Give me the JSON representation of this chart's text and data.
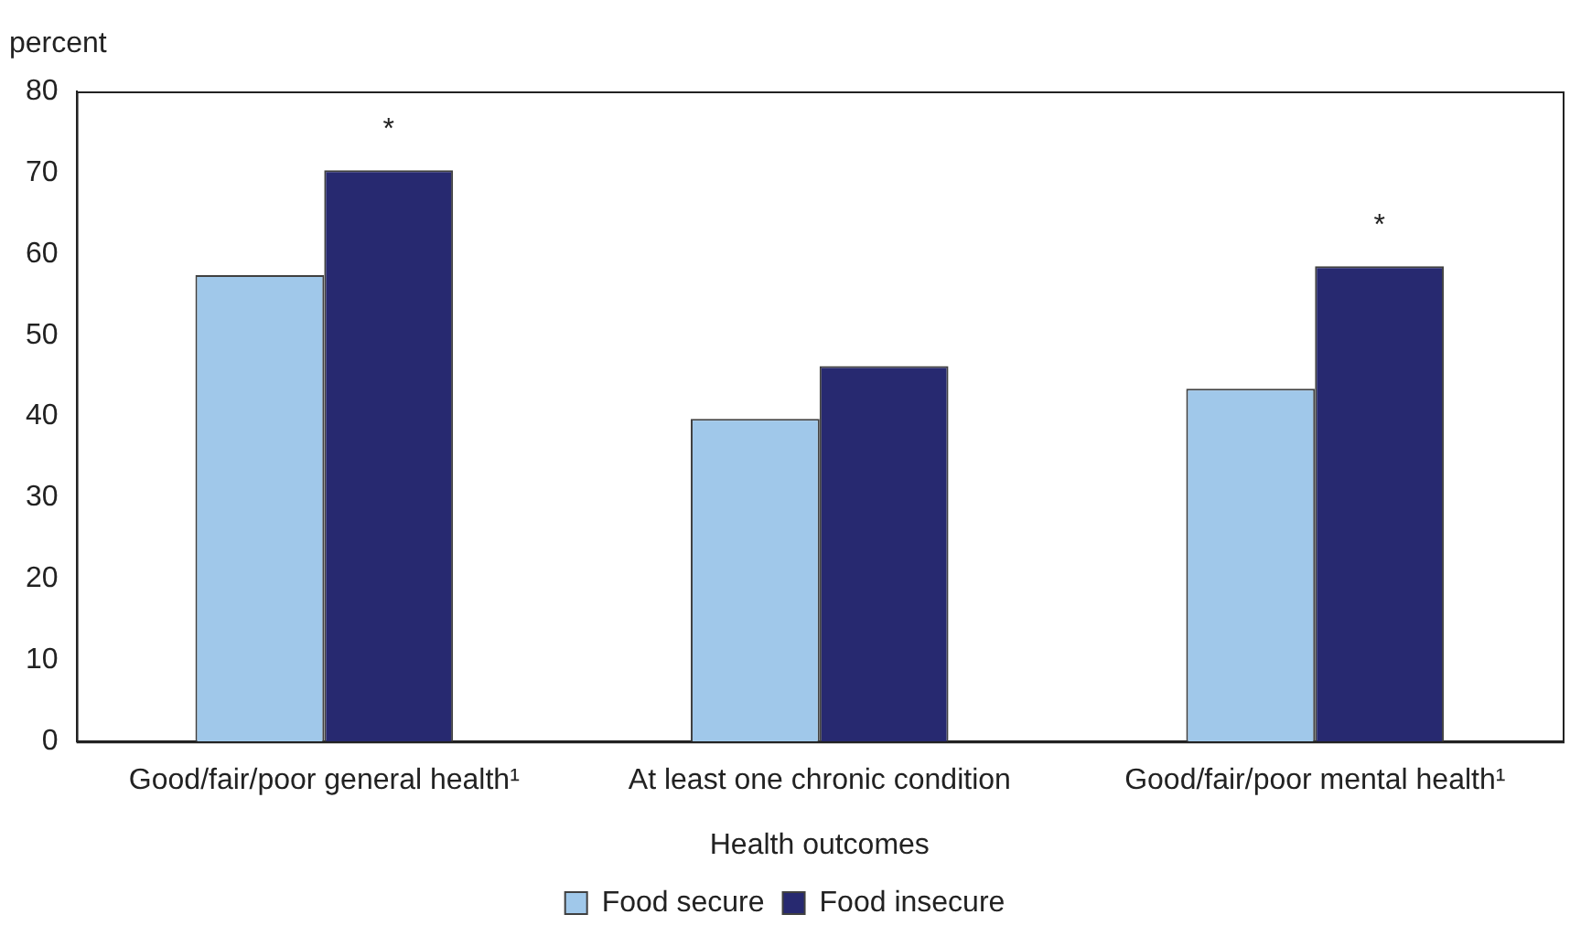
{
  "chart_data": {
    "type": "bar",
    "ylabel": "percent",
    "xlabel": "Health outcomes",
    "categories": [
      "Good/fair/poor general health¹",
      "At least one chronic condition",
      "Good/fair/poor mental health¹"
    ],
    "series": [
      {
        "name": "Food secure",
        "color": "#a0c8ea",
        "values": [
          57.4,
          39.7,
          43.4
        ]
      },
      {
        "name": "Food insecure",
        "color": "#272970",
        "values": [
          70.3,
          46.2,
          58.5
        ]
      }
    ],
    "ylim": [
      0,
      80
    ],
    "yticks": [
      0,
      10,
      20,
      30,
      40,
      50,
      60,
      70,
      80
    ],
    "grid": false,
    "legend": "bottom",
    "annotations": [
      {
        "text": "*",
        "x": "Good/fair/poor general health¹",
        "y": 70.3
      },
      {
        "text": "*",
        "x": "Good/fair/poor mental health¹",
        "y": 58.5
      }
    ]
  }
}
